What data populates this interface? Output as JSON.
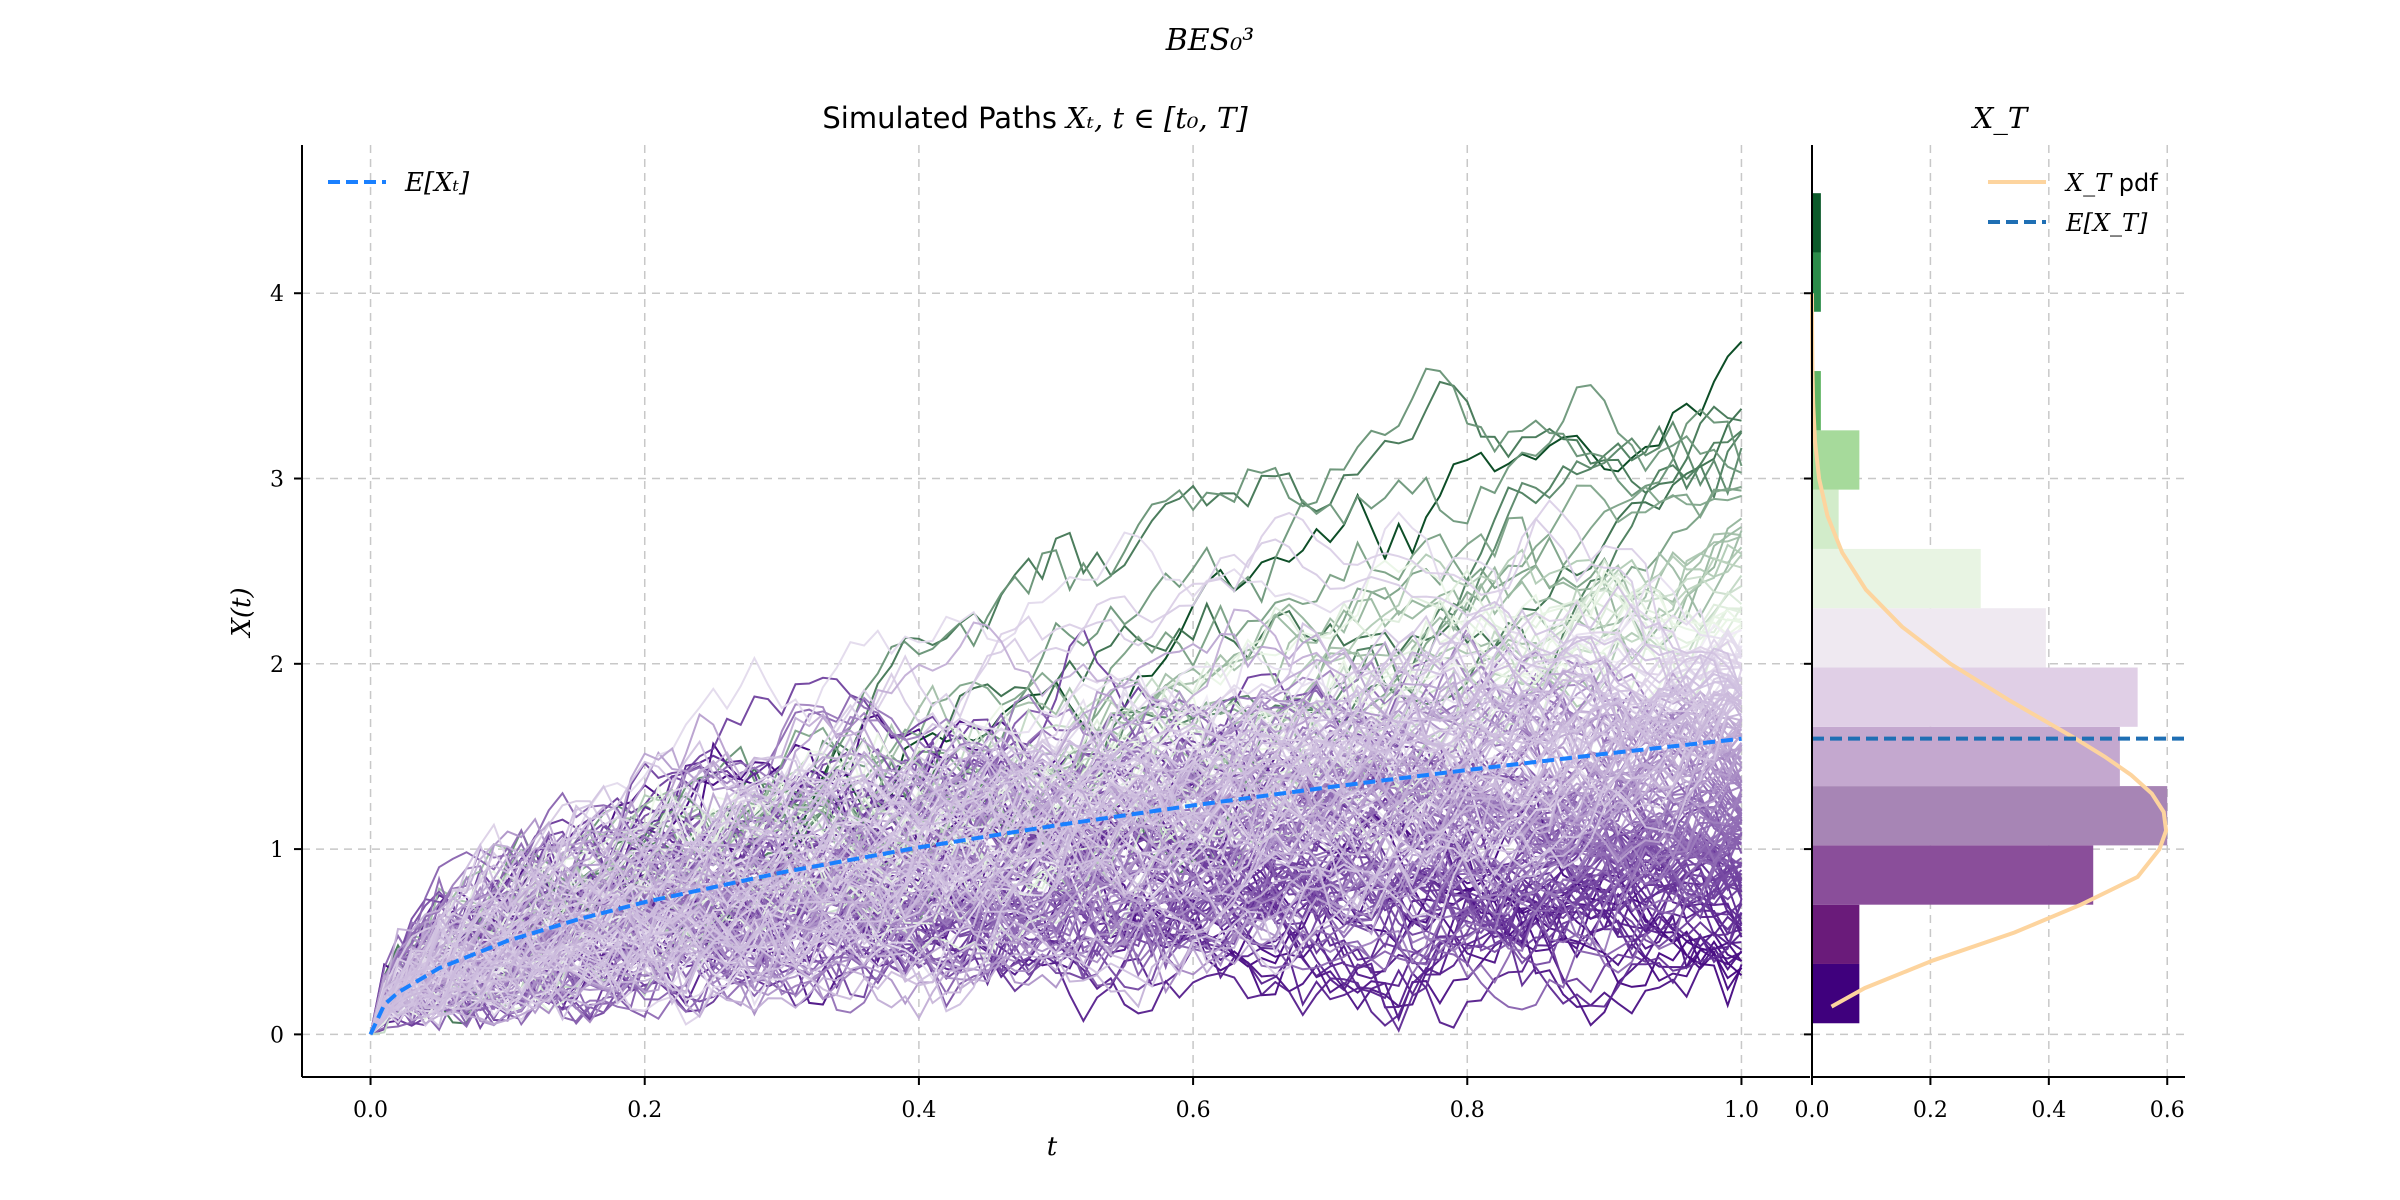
{
  "figure": {
    "suptitle": "BES₀³"
  },
  "chart_data": [
    {
      "type": "line",
      "title": "Simulated Paths Xₜ, t ∈ [t₀, T]",
      "title_prefix": "Simulated Paths ",
      "title_math": "Xₜ, t ∈ [t₀, T]",
      "xlabel": "t",
      "ylabel": "X(t)",
      "xlim": [
        -0.05,
        1.05
      ],
      "ylim": [
        -0.23,
        4.8
      ],
      "xticks": [
        "0.0",
        "0.2",
        "0.4",
        "0.6",
        "0.8",
        "1.0"
      ],
      "yticks": [
        "0",
        "1",
        "2",
        "3",
        "4"
      ],
      "grid": true,
      "legend_placement": "top-left",
      "legend": [
        {
          "label": "E[Xₜ]",
          "style": "dashed",
          "color": "#1a80ff"
        }
      ],
      "series": [
        {
          "name": "E[Xₜ]",
          "color": "#1a80ff",
          "style": "dashed",
          "x": [
            0.0,
            0.01,
            0.02,
            0.05,
            0.1,
            0.15,
            0.2,
            0.3,
            0.4,
            0.5,
            0.6,
            0.7,
            0.8,
            0.9,
            1.0
          ],
          "y": [
            0.0,
            0.16,
            0.226,
            0.357,
            0.505,
            0.618,
            0.714,
            0.874,
            1.009,
            1.128,
            1.236,
            1.335,
            1.427,
            1.514,
            1.596
          ]
        }
      ],
      "simulated_paths": {
        "count": 200,
        "steps": 100,
        "t_range": [
          0.0,
          1.0
        ],
        "start_value": 0.0,
        "colormap_low": [
          "#3f007d",
          "#f2eef6"
        ],
        "colormap_high": [
          "#edf8e9",
          "#00441b"
        ]
      }
    },
    {
      "type": "histogram",
      "title": "X_T",
      "orientation": "horizontal",
      "xlim": [
        0.0,
        0.63
      ],
      "ylim": [
        -0.23,
        4.8
      ],
      "xticks": [
        "0.0",
        "0.2",
        "0.4",
        "0.6"
      ],
      "grid": true,
      "legend_placement": "top-right",
      "legend": [
        {
          "label": "X_T",
          "suffix": " pdf",
          "style": "solid",
          "color": "#fdd49e"
        },
        {
          "label": "E[X_T]",
          "style": "dashed",
          "color": "#1f6fb4"
        }
      ],
      "bins": [
        {
          "y0": 0.06,
          "y1": 0.38,
          "density": 0.08,
          "color": "#3f007d"
        },
        {
          "y0": 0.38,
          "y1": 0.7,
          "density": 0.08,
          "color": "#6a1b7a"
        },
        {
          "y0": 0.7,
          "y1": 1.02,
          "density": 0.475,
          "color": "#8a4e9a"
        },
        {
          "y0": 1.02,
          "y1": 1.34,
          "density": 0.6,
          "color": "#a785b5"
        },
        {
          "y0": 1.34,
          "y1": 1.66,
          "density": 0.52,
          "color": "#c4a8cf"
        },
        {
          "y0": 1.66,
          "y1": 1.98,
          "density": 0.55,
          "color": "#e0cfe6"
        },
        {
          "y0": 1.98,
          "y1": 2.3,
          "density": 0.395,
          "color": "#efe9f1"
        },
        {
          "y0": 2.3,
          "y1": 2.62,
          "density": 0.285,
          "color": "#e8f4e3"
        },
        {
          "y0": 2.62,
          "y1": 2.94,
          "density": 0.045,
          "color": "#d2ecca"
        },
        {
          "y0": 2.94,
          "y1": 3.26,
          "density": 0.08,
          "color": "#a6da9b"
        },
        {
          "y0": 3.26,
          "y1": 3.58,
          "density": 0.015,
          "color": "#62b565"
        },
        {
          "y0": 3.58,
          "y1": 3.9,
          "density": 0.0,
          "color": "#62b565"
        },
        {
          "y0": 3.9,
          "y1": 4.22,
          "density": 0.015,
          "color": "#2c8c4a"
        },
        {
          "y0": 4.22,
          "y1": 4.54,
          "density": 0.015,
          "color": "#0b5a2a"
        }
      ],
      "pdf": {
        "name": "X_T pdf",
        "color": "#fdd49e",
        "x": [
          0.15,
          0.25,
          0.4,
          0.55,
          0.7,
          0.85,
          1.0,
          1.1,
          1.2,
          1.3,
          1.4,
          1.5,
          1.6,
          1.8,
          2.0,
          2.2,
          2.4,
          2.6,
          2.8,
          3.0,
          3.2,
          3.4,
          3.6,
          3.8,
          4.0
        ],
        "density": [
          0.033,
          0.089,
          0.205,
          0.342,
          0.454,
          0.55,
          0.587,
          0.598,
          0.594,
          0.574,
          0.539,
          0.494,
          0.443,
          0.335,
          0.234,
          0.152,
          0.091,
          0.051,
          0.026,
          0.012,
          0.005,
          0.002,
          0.0007,
          0.0002,
          6e-05
        ]
      },
      "mean": {
        "name": "E[X_T]",
        "value": 1.596,
        "color": "#1f6fb4"
      }
    }
  ]
}
